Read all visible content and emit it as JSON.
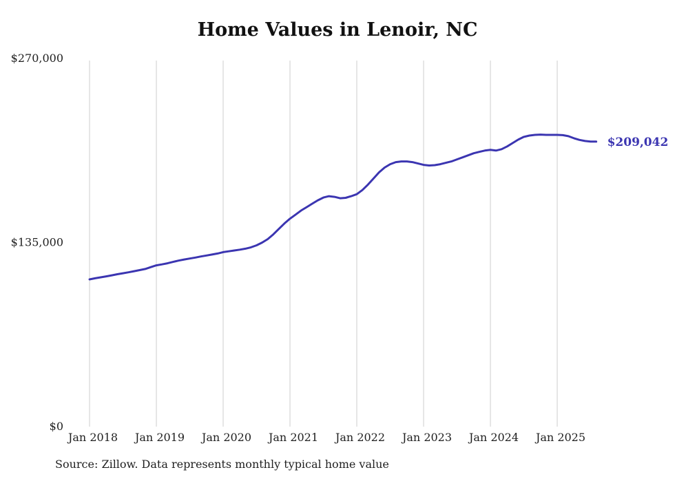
{
  "chart_data": {
    "type": "line",
    "title": "Home Values in Lenoir, NC",
    "source_note": "Source: Zillow. Data represents monthly typical home value",
    "end_label": "$209,042",
    "latest_value": 209042,
    "ylim": [
      0,
      270000
    ],
    "y_ticks": [
      {
        "value": 0,
        "label": "$0"
      },
      {
        "value": 135000,
        "label": "$135,000"
      },
      {
        "value": 270000,
        "label": "$270,000"
      }
    ],
    "x_tick_labels": [
      "Jan 2018",
      "Jan 2019",
      "Jan 2020",
      "Jan 2021",
      "Jan 2022",
      "Jan 2023",
      "Jan 2024",
      "Jan 2025"
    ],
    "x_start": "2018-01",
    "frequency": "monthly",
    "grid": "vertical-yearly",
    "legend": "none",
    "colors": {
      "line": "#3b35b1",
      "grid": "#cccccc",
      "text": "#1f1f1f",
      "background": "#ffffff"
    },
    "series": [
      {
        "name": "Typical home value",
        "color": "#3b35b1",
        "values": [
          108000,
          108800,
          109500,
          110200,
          111000,
          111800,
          112500,
          113200,
          114000,
          114800,
          115600,
          117000,
          118300,
          119000,
          119800,
          120800,
          121800,
          122600,
          123300,
          124000,
          124800,
          125500,
          126200,
          127000,
          128000,
          128600,
          129200,
          129800,
          130500,
          131500,
          133000,
          135000,
          137500,
          141000,
          145000,
          149000,
          152500,
          155500,
          158500,
          161000,
          163500,
          166000,
          168000,
          169000,
          168500,
          167500,
          167800,
          169000,
          170500,
          173500,
          177500,
          182000,
          186500,
          190000,
          192500,
          194000,
          194500,
          194500,
          194000,
          193000,
          192000,
          191500,
          191800,
          192500,
          193500,
          194500,
          196000,
          197500,
          199000,
          200500,
          201500,
          202500,
          203000,
          202500,
          203500,
          205500,
          208000,
          210500,
          212500,
          213500,
          214000,
          214200,
          214000,
          214000,
          214000,
          213800,
          213000,
          211500,
          210300,
          209500,
          209100,
          209042
        ]
      }
    ]
  }
}
